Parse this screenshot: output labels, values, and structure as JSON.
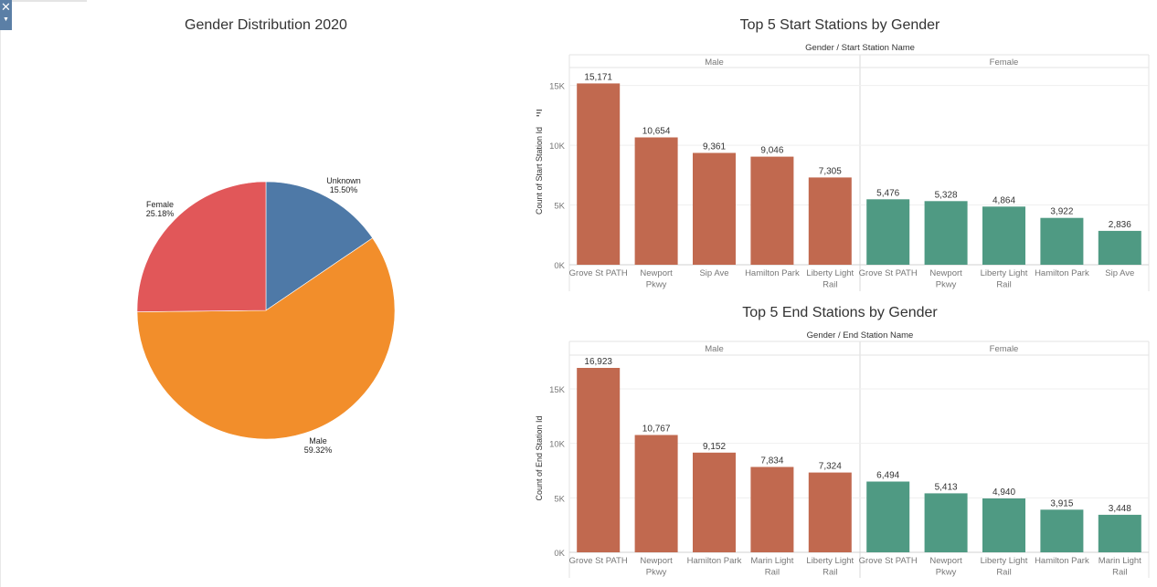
{
  "chart_data": [
    {
      "type": "pie",
      "title": "Gender Distribution 2020",
      "slices": [
        {
          "label": "Unknown",
          "value": 15.5,
          "display": "15.50%",
          "color": "#4e79a7"
        },
        {
          "label": "Male",
          "value": 59.32,
          "display": "59.32%",
          "color": "#f28e2b"
        },
        {
          "label": "Female",
          "value": 25.18,
          "display": "25.18%",
          "color": "#e15759"
        }
      ]
    },
    {
      "type": "bar",
      "title": "Top 5 Start Stations by Gender",
      "header": "Gender  /  Start Station Name",
      "ylabel": "Count of Start Station Id",
      "ylim": [
        0,
        16500
      ],
      "yticks": [
        0,
        5000,
        10000,
        15000
      ],
      "ytick_labels": [
        "0K",
        "5K",
        "10K",
        "15K"
      ],
      "groups": [
        {
          "name": "Male",
          "color": "#c1694f",
          "categories": [
            "Grove St PATH",
            "Newport Pkwy",
            "Sip Ave",
            "Hamilton Park",
            "Liberty Light Rail"
          ],
          "values": [
            15171,
            10654,
            9361,
            9046,
            7305
          ],
          "labels": [
            "15,171",
            "10,654",
            "9,361",
            "9,046",
            "7,305"
          ]
        },
        {
          "name": "Female",
          "color": "#4f9a83",
          "categories": [
            "Grove St PATH",
            "Newport Pkwy",
            "Liberty Light Rail",
            "Hamilton Park",
            "Sip Ave"
          ],
          "values": [
            5476,
            5328,
            4864,
            3922,
            2836
          ],
          "labels": [
            "5,476",
            "5,328",
            "4,864",
            "3,922",
            "2,836"
          ]
        }
      ]
    },
    {
      "type": "bar",
      "title": "Top 5 End Stations by Gender",
      "header": "Gender  /  End Station Name",
      "ylabel": "Count of End Station Id",
      "ylim": [
        0,
        18100
      ],
      "yticks": [
        0,
        5000,
        10000,
        15000
      ],
      "ytick_labels": [
        "0K",
        "5K",
        "10K",
        "15K"
      ],
      "groups": [
        {
          "name": "Male",
          "color": "#c1694f",
          "categories": [
            "Grove St PATH",
            "Newport Pkwy",
            "Hamilton Park",
            "Marin Light Rail",
            "Liberty Light Rail"
          ],
          "values": [
            16923,
            10767,
            9152,
            7834,
            7324
          ],
          "labels": [
            "16,923",
            "10,767",
            "9,152",
            "7,834",
            "7,324"
          ]
        },
        {
          "name": "Female",
          "color": "#4f9a83",
          "categories": [
            "Grove St PATH",
            "Newport Pkwy",
            "Liberty Light Rail",
            "Hamilton Park",
            "Marin Light Rail"
          ],
          "values": [
            6494,
            5413,
            4940,
            3915,
            3448
          ],
          "labels": [
            "6,494",
            "5,413",
            "4,940",
            "3,915",
            "3,448"
          ]
        }
      ]
    }
  ],
  "ui": {
    "close_glyph": "✕",
    "menu_glyph": "▼",
    "sort_icon": "sort-icon"
  }
}
